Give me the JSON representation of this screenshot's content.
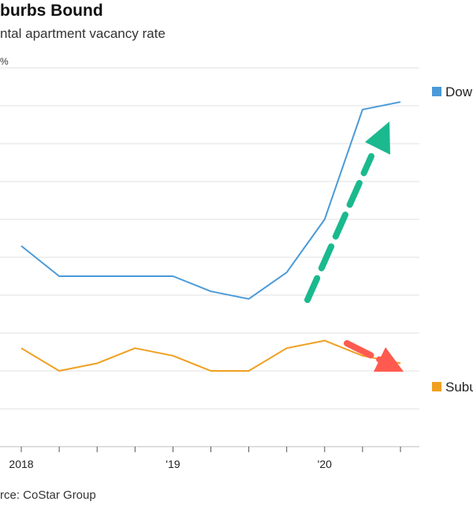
{
  "title": "burbs Bound",
  "subtitle": "ntal apartment vacancy rate",
  "source": "rce: CoStar Group",
  "unit_label": "%",
  "chart_data": {
    "type": "line",
    "title": "burbs Bound",
    "subtitle": "ntal apartment vacancy rate",
    "x_tick_labels": [
      {
        "label": "2018",
        "index": 0
      },
      {
        "label": "'19",
        "index": 4
      },
      {
        "label": "'20",
        "index": 8
      }
    ],
    "x_count": 11,
    "ylim": [
      2,
      12
    ],
    "grid": true,
    "series": [
      {
        "name": "Dow",
        "color": "#4a9ad8",
        "values": [
          7.3,
          6.5,
          6.5,
          6.5,
          6.5,
          6.1,
          5.9,
          6.6,
          8.0,
          10.9,
          11.1
        ]
      },
      {
        "name": "Subu",
        "color": "#f0a020",
        "values": [
          4.6,
          4.0,
          4.2,
          4.6,
          4.4,
          4.0,
          4.0,
          4.6,
          4.8,
          4.4,
          4.2
        ]
      }
    ],
    "annotations": [
      {
        "type": "arrow",
        "style": "dashed",
        "color": "#1ab98e",
        "direction": "up"
      },
      {
        "type": "arrow",
        "style": "dashed",
        "color": "#ff5a4f",
        "direction": "down"
      }
    ]
  }
}
